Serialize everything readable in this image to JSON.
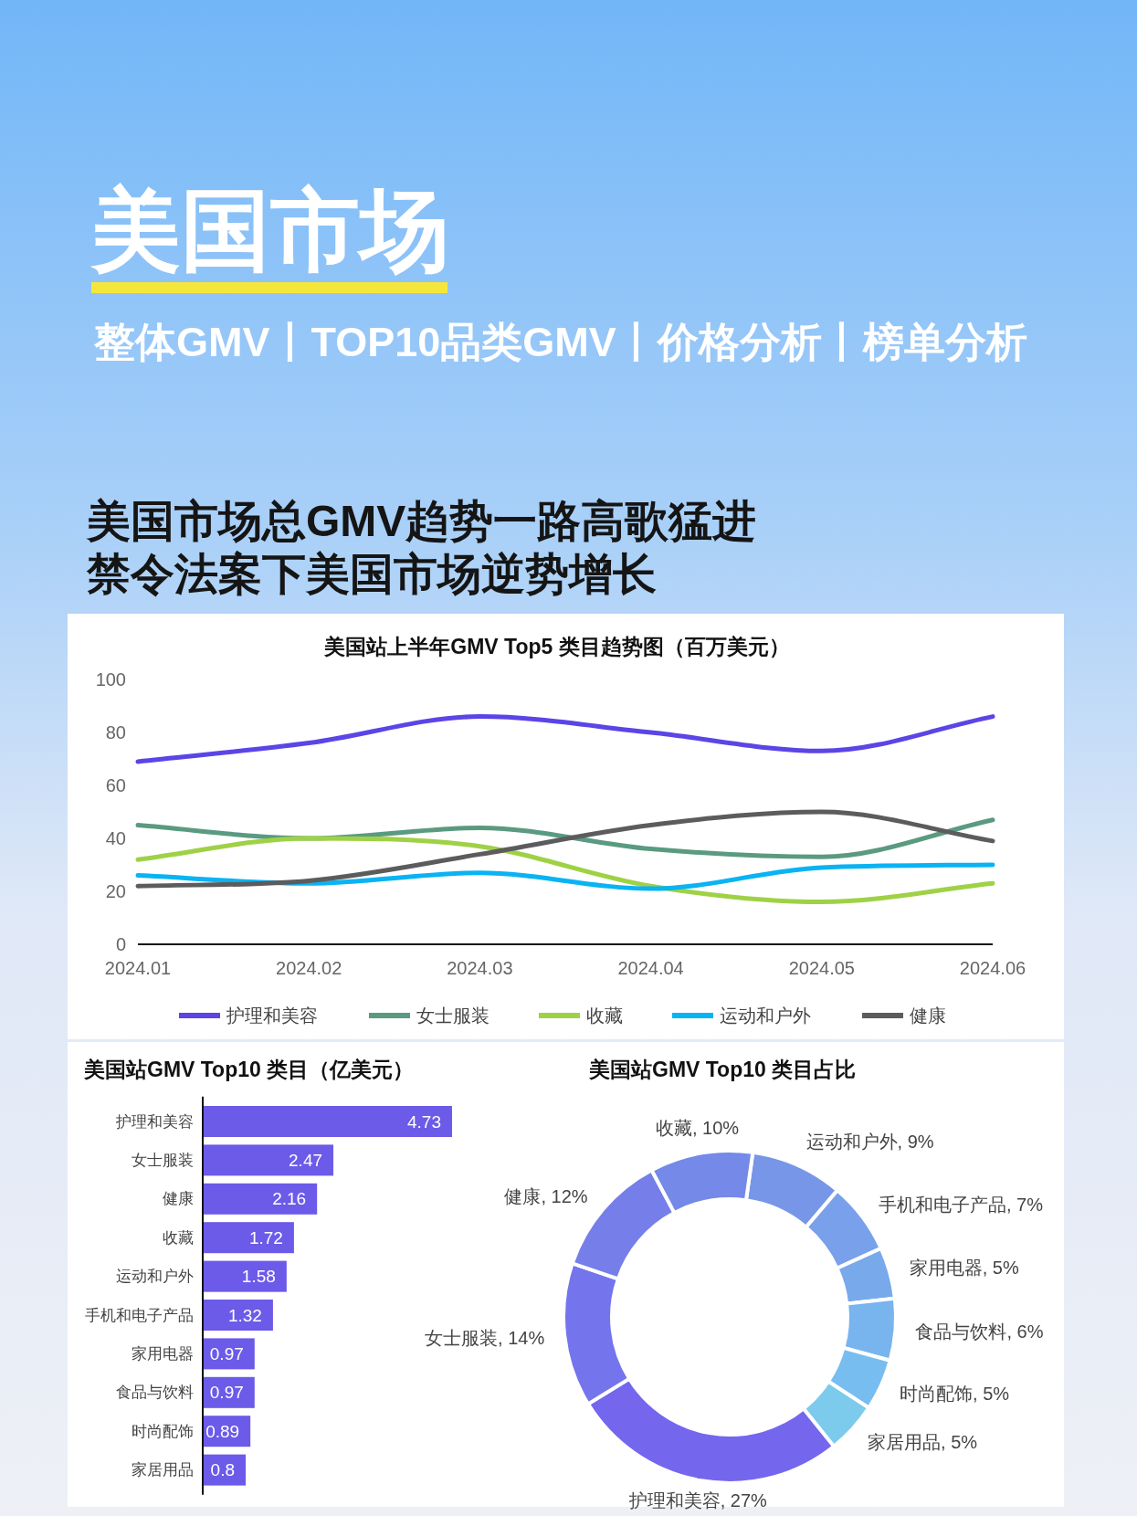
{
  "chart_data": [
    {
      "type": "other",
      "title": "美国市场",
      "subtitle": "整体GMV丨TOP10品类GMV丨价格分析丨榜单分析",
      "annotations": [
        "美国市场总GMV趋势一路高歌猛进",
        "禁令法案下美国市场逆势增长"
      ]
    },
    {
      "type": "line",
      "title": "美国站上半年GMV Top5 类目趋势图（百万美元）",
      "categories": [
        "2024.01",
        "2024.02",
        "2024.03",
        "2024.04",
        "2024.05",
        "2024.06"
      ],
      "ylim": [
        0,
        100
      ],
      "yticks": [
        0,
        20,
        40,
        60,
        80,
        100
      ],
      "legend": "bottom",
      "series": [
        {
          "name": "护理和美容",
          "color": "#5b45e6",
          "values": [
            69,
            76,
            86,
            80,
            73,
            86
          ]
        },
        {
          "name": "女士服装",
          "color": "#5a9a80",
          "values": [
            45,
            40,
            44,
            36,
            33,
            47
          ]
        },
        {
          "name": "收藏",
          "color": "#9fd146",
          "values": [
            32,
            40,
            37,
            22,
            16,
            23
          ]
        },
        {
          "name": "运动和户外",
          "color": "#0ab3f2",
          "values": [
            26,
            23,
            27,
            21,
            29,
            30
          ]
        },
        {
          "name": "健康",
          "color": "#5c5c5e",
          "values": [
            22,
            24,
            34,
            45,
            50,
            39
          ]
        }
      ]
    },
    {
      "type": "bar",
      "orientation": "horizontal",
      "title": "美国站GMV Top10 类目（亿美元）",
      "categories": [
        "护理和美容",
        "女士服装",
        "健康",
        "收藏",
        "运动和户外",
        "手机和电子产品",
        "家用电器",
        "食品与饮料",
        "时尚配饰",
        "家居用品"
      ],
      "values": [
        4.73,
        2.47,
        2.16,
        1.72,
        1.58,
        1.32,
        0.97,
        0.97,
        0.89,
        0.8
      ],
      "color": "#6c5ae8",
      "data_labels": true
    },
    {
      "type": "donut",
      "title": "美国站GMV Top10 类目占比",
      "categories": [
        "运动和户外",
        "手机和电子产品",
        "家用电器",
        "食品与饮料",
        "时尚配饰",
        "家居用品",
        "护理和美容",
        "女士服装",
        "健康",
        "收藏"
      ],
      "values": [
        9,
        7,
        5,
        6,
        5,
        5,
        27,
        14,
        12,
        10
      ],
      "value_labels": [
        "9%",
        "7%",
        "5%",
        "6%",
        "5%",
        "5%",
        "27%",
        "14%",
        "12%",
        "10%"
      ],
      "colors": [
        "#7896e8",
        "#79a0eb",
        "#78aaeb",
        "#78b4ee",
        "#78bdf0",
        "#7ccbec",
        "#7566ee",
        "#7474ec",
        "#767ee9",
        "#7489e8"
      ]
    }
  ]
}
